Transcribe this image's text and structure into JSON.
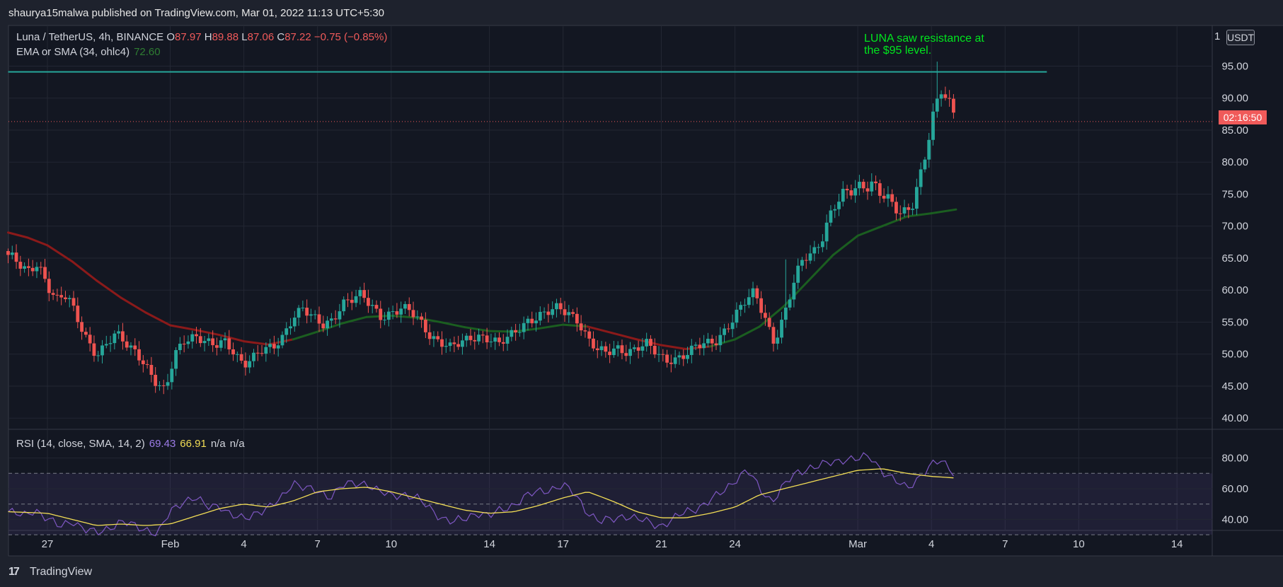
{
  "header": {
    "publisher": "shaurya15malwa published on TradingView.com, Mar 01, 2022 11:13 UTC+5:30"
  },
  "legend": {
    "symbol": "Luna / TetherUS, 4h, BINANCE",
    "open_label": "O",
    "open": "87.97",
    "high_label": "H",
    "high": "89.88",
    "low_label": "L",
    "low": "87.06",
    "close_label": "C",
    "close": "87.22",
    "change": "−0.75 (−0.85%)",
    "ma_label": "EMA or SMA (34, ohlc4)",
    "ma_value": "72.60"
  },
  "rsi_legend": {
    "label": "RSI (14, close, SMA, 14, 2)",
    "rsi_value": "69.43",
    "rsi_ma_value": "66.91",
    "na1": "n/a",
    "na2": "n/a"
  },
  "annotation": "LUNA saw resistance at\nthe $95 level.",
  "price_axis": {
    "unit": "USDT",
    "top_label": "1",
    "countdown": "02:16:50"
  },
  "footer": {
    "brand": "TradingView"
  },
  "colors": {
    "background": "#1e222d",
    "up": "#26a69a",
    "down": "#ef5350",
    "ma_green": "#1b5e20",
    "ma_red": "#8b1a1a",
    "resistance": "#26a69a",
    "annotation": "#00e61e",
    "rsi": "#7e57c2",
    "rsi_ma": "#f2dd55"
  },
  "chart_data": [
    {
      "type": "candlestick",
      "title": "Luna / TetherUS, 4h, BINANCE",
      "y_ticks": [
        "95.00",
        "90.00",
        "85.00",
        "80.00",
        "75.00",
        "70.00",
        "65.00",
        "60.00",
        "55.00",
        "50.00",
        "45.00",
        "40.00"
      ],
      "ylim": [
        39,
        96.5
      ],
      "x_ticks": [
        {
          "label": "27",
          "day": 0
        },
        {
          "label": "Feb",
          "day": 5
        },
        {
          "label": "4",
          "day": 8
        },
        {
          "label": "7",
          "day": 11
        },
        {
          "label": "10",
          "day": 14
        },
        {
          "label": "14",
          "day": 18
        },
        {
          "label": "17",
          "day": 21
        },
        {
          "label": "21",
          "day": 25
        },
        {
          "label": "24",
          "day": 28
        },
        {
          "label": "Mar",
          "day": 33
        },
        {
          "label": "4",
          "day": 36
        },
        {
          "label": "7",
          "day": 39
        },
        {
          "label": "10",
          "day": 42
        },
        {
          "label": "14",
          "day": 46
        }
      ],
      "x_start_day": -1.6,
      "anchors": [
        [
          -1.6,
          65.5
        ],
        [
          -1.2,
          64
        ],
        [
          -0.8,
          62.5
        ],
        [
          -0.4,
          64.5
        ],
        [
          0,
          61
        ],
        [
          0.4,
          58.5
        ],
        [
          0.8,
          59
        ],
        [
          1.2,
          55.5
        ],
        [
          1.6,
          52.5
        ],
        [
          2,
          50
        ],
        [
          2.4,
          51.5
        ],
        [
          2.8,
          53
        ],
        [
          3.2,
          51.5
        ],
        [
          3.6,
          50.5
        ],
        [
          4,
          48.5
        ],
        [
          4.4,
          45.5
        ],
        [
          4.8,
          44
        ],
        [
          5.2,
          50
        ],
        [
          5.6,
          52.5
        ],
        [
          6,
          53
        ],
        [
          6.4,
          52
        ],
        [
          6.8,
          51
        ],
        [
          7.2,
          52
        ],
        [
          7.6,
          50.5
        ],
        [
          8,
          48.5
        ],
        [
          8.4,
          49.5
        ],
        [
          8.8,
          50.5
        ],
        [
          9.2,
          51
        ],
        [
          9.6,
          53
        ],
        [
          10,
          56
        ],
        [
          10.4,
          57
        ],
        [
          10.8,
          55.5
        ],
        [
          11.2,
          54.5
        ],
        [
          11.6,
          55.5
        ],
        [
          12,
          58
        ],
        [
          12.4,
          58.5
        ],
        [
          12.8,
          59
        ],
        [
          13.2,
          57.5
        ],
        [
          13.6,
          56
        ],
        [
          14,
          56.5
        ],
        [
          14.4,
          57
        ],
        [
          14.8,
          56.5
        ],
        [
          15.2,
          55
        ],
        [
          15.6,
          53
        ],
        [
          16,
          52
        ],
        [
          16.4,
          51
        ],
        [
          16.8,
          51.5
        ],
        [
          17.2,
          52.5
        ],
        [
          17.6,
          53
        ],
        [
          18,
          52.5
        ],
        [
          18.4,
          51.5
        ],
        [
          18.8,
          52.5
        ],
        [
          19.2,
          54
        ],
        [
          19.6,
          55.5
        ],
        [
          20,
          56
        ],
        [
          20.4,
          56.5
        ],
        [
          20.8,
          57
        ],
        [
          21.2,
          56.5
        ],
        [
          21.6,
          55.5
        ],
        [
          22,
          52.5
        ],
        [
          22.4,
          50.5
        ],
        [
          22.8,
          50
        ],
        [
          23.2,
          51
        ],
        [
          23.6,
          50.5
        ],
        [
          24,
          51
        ],
        [
          24.4,
          51.5
        ],
        [
          24.8,
          50
        ],
        [
          25.2,
          49
        ],
        [
          25.6,
          49.5
        ],
        [
          26,
          50
        ],
        [
          26.4,
          51
        ],
        [
          26.8,
          51.5
        ],
        [
          27.2,
          52
        ],
        [
          27.6,
          54
        ],
        [
          28,
          56
        ],
        [
          28.4,
          58
        ],
        [
          28.8,
          59.5
        ],
        [
          29.2,
          56
        ],
        [
          29.6,
          52
        ],
        [
          30,
          56
        ],
        [
          30.4,
          61
        ],
        [
          30.8,
          65
        ],
        [
          31.2,
          66
        ],
        [
          31.6,
          69
        ],
        [
          32,
          73
        ],
        [
          32.4,
          74.5
        ],
        [
          32.8,
          75.5
        ],
        [
          33.2,
          76.5
        ],
        [
          33.6,
          77
        ],
        [
          34,
          75
        ],
        [
          34.4,
          73
        ],
        [
          34.8,
          71.5
        ],
        [
          35.2,
          73.5
        ],
        [
          35.6,
          79
        ],
        [
          36,
          86
        ],
        [
          36.4,
          91
        ],
        [
          36.8,
          88
        ],
        [
          37.05,
          87.2
        ]
      ],
      "ema_34": {
        "label": "EMA or SMA (34, ohlc4)",
        "points": [
          [
            -1.6,
            69
          ],
          [
            -0.8,
            68.2
          ],
          [
            0,
            67
          ],
          [
            1,
            64.5
          ],
          [
            2,
            61.5
          ],
          [
            3,
            58.8
          ],
          [
            4,
            56.5
          ],
          [
            5,
            54.5
          ],
          [
            6,
            53.8
          ],
          [
            7,
            53
          ],
          [
            8,
            52
          ],
          [
            9,
            51.5
          ],
          [
            10,
            52.3
          ],
          [
            11,
            53.5
          ],
          [
            12,
            54.8
          ],
          [
            13,
            55.8
          ],
          [
            14,
            56
          ],
          [
            15,
            55.7
          ],
          [
            16,
            55
          ],
          [
            17,
            54.2
          ],
          [
            18,
            53.6
          ],
          [
            19,
            53.5
          ],
          [
            20,
            54
          ],
          [
            21,
            54.6
          ],
          [
            22,
            54.3
          ],
          [
            23,
            53.3
          ],
          [
            24,
            52.3
          ],
          [
            25,
            51.4
          ],
          [
            26,
            50.8
          ],
          [
            27,
            51.2
          ],
          [
            28,
            52.3
          ],
          [
            29,
            54.3
          ],
          [
            30,
            57.5
          ],
          [
            31,
            61.5
          ],
          [
            32,
            65.5
          ],
          [
            33,
            68.5
          ],
          [
            34,
            70
          ],
          [
            35,
            71.5
          ],
          [
            36,
            72
          ],
          [
            37,
            72.6
          ]
        ]
      },
      "resistance": {
        "value": 94.1,
        "x_range_days": [
          -1.6,
          40.7
        ],
        "label": "LUNA saw resistance at the $95 level."
      },
      "last_price": {
        "value": 87.22,
        "countdown": "02:16:50"
      }
    },
    {
      "type": "line",
      "title": "RSI (14, close, SMA, 14, 2)",
      "y_ticks": [
        "80.00",
        "60.00",
        "40.00"
      ],
      "ylim": [
        25,
        84
      ],
      "bands": {
        "upper": 70,
        "middle": 50,
        "lower": 30
      },
      "series": [
        {
          "name": "RSI",
          "points": [
            [
              -1.6,
              45
            ],
            [
              -1,
              42
            ],
            [
              -0.5,
              47
            ],
            [
              0,
              40
            ],
            [
              0.5,
              35
            ],
            [
              1,
              40
            ],
            [
              1.5,
              33
            ],
            [
              2,
              31
            ],
            [
              2.5,
              35
            ],
            [
              3,
              38
            ],
            [
              3.5,
              36
            ],
            [
              4,
              34
            ],
            [
              4.5,
              30
            ],
            [
              5,
              45
            ],
            [
              5.5,
              52
            ],
            [
              6,
              54
            ],
            [
              6.5,
              48
            ],
            [
              7,
              50
            ],
            [
              7.5,
              42
            ],
            [
              8,
              40
            ],
            [
              8.5,
              45
            ],
            [
              9,
              47
            ],
            [
              9.5,
              53
            ],
            [
              10,
              65
            ],
            [
              10.5,
              60
            ],
            [
              11,
              58
            ],
            [
              11.5,
              55
            ],
            [
              12,
              62
            ],
            [
              12.5,
              63
            ],
            [
              13,
              64
            ],
            [
              13.5,
              58
            ],
            [
              14,
              55
            ],
            [
              14.5,
              57
            ],
            [
              15,
              54
            ],
            [
              15.5,
              48
            ],
            [
              16,
              42
            ],
            [
              16.5,
              38
            ],
            [
              17,
              40
            ],
            [
              17.5,
              45
            ],
            [
              18,
              42
            ],
            [
              18.5,
              46
            ],
            [
              19,
              50
            ],
            [
              19.5,
              55
            ],
            [
              20,
              58
            ],
            [
              20.5,
              60
            ],
            [
              21,
              62
            ],
            [
              21.5,
              56
            ],
            [
              22,
              45
            ],
            [
              22.5,
              38
            ],
            [
              23,
              40
            ],
            [
              23.5,
              43
            ],
            [
              24,
              40
            ],
            [
              24.5,
              38
            ],
            [
              25,
              36
            ],
            [
              25.5,
              40
            ],
            [
              26,
              45
            ],
            [
              26.5,
              48
            ],
            [
              27,
              52
            ],
            [
              27.5,
              58
            ],
            [
              28,
              66
            ],
            [
              28.5,
              72
            ],
            [
              29,
              60
            ],
            [
              29.5,
              52
            ],
            [
              30,
              62
            ],
            [
              30.5,
              70
            ],
            [
              31,
              74
            ],
            [
              31.5,
              75
            ],
            [
              32,
              77
            ],
            [
              32.5,
              80
            ],
            [
              33,
              79
            ],
            [
              33.5,
              81
            ],
            [
              34,
              72
            ],
            [
              34.5,
              65
            ],
            [
              35,
              60
            ],
            [
              35.5,
              68
            ],
            [
              36,
              75
            ],
            [
              36.4,
              78
            ],
            [
              37.05,
              69.43
            ]
          ]
        },
        {
          "name": "RSI-based MA",
          "points": [
            [
              -1.6,
              45
            ],
            [
              0,
              44
            ],
            [
              1,
              40
            ],
            [
              2,
              36
            ],
            [
              3,
              37
            ],
            [
              4,
              36
            ],
            [
              5,
              37
            ],
            [
              6,
              42
            ],
            [
              7,
              47
            ],
            [
              8,
              50
            ],
            [
              9,
              48
            ],
            [
              10,
              52
            ],
            [
              11,
              58
            ],
            [
              12,
              60
            ],
            [
              13,
              61
            ],
            [
              14,
              58
            ],
            [
              15,
              54
            ],
            [
              16,
              50
            ],
            [
              17,
              46
            ],
            [
              18,
              44
            ],
            [
              19,
              45
            ],
            [
              20,
              49
            ],
            [
              21,
              54
            ],
            [
              22,
              58
            ],
            [
              23,
              52
            ],
            [
              24,
              45
            ],
            [
              25,
              41
            ],
            [
              26,
              41
            ],
            [
              27,
              44
            ],
            [
              28,
              48
            ],
            [
              29,
              56
            ],
            [
              30,
              60
            ],
            [
              31,
              64
            ],
            [
              32,
              68
            ],
            [
              33,
              72
            ],
            [
              34,
              73
            ],
            [
              35,
              70
            ],
            [
              36,
              68
            ],
            [
              37.05,
              66.91
            ]
          ]
        }
      ],
      "last_values": {
        "rsi": "69.43",
        "rsi_ma": "66.91"
      }
    }
  ]
}
